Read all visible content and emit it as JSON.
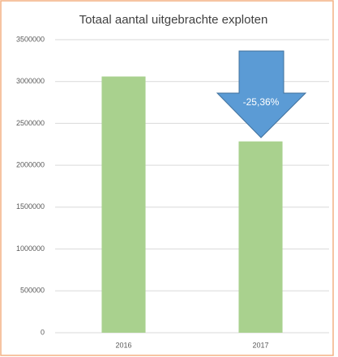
{
  "chart_data": {
    "type": "bar",
    "title": "Totaal aantal uitgebrachte exploten",
    "categories": [
      "2016",
      "2017"
    ],
    "values": [
      3060000,
      2285000
    ],
    "color": "#a9d18e",
    "ylim": [
      0,
      3500000
    ],
    "yticks": [
      0,
      500000,
      1000000,
      1500000,
      2000000,
      2500000,
      3000000,
      3500000
    ],
    "grid": true,
    "annotation": "-25,36%"
  }
}
